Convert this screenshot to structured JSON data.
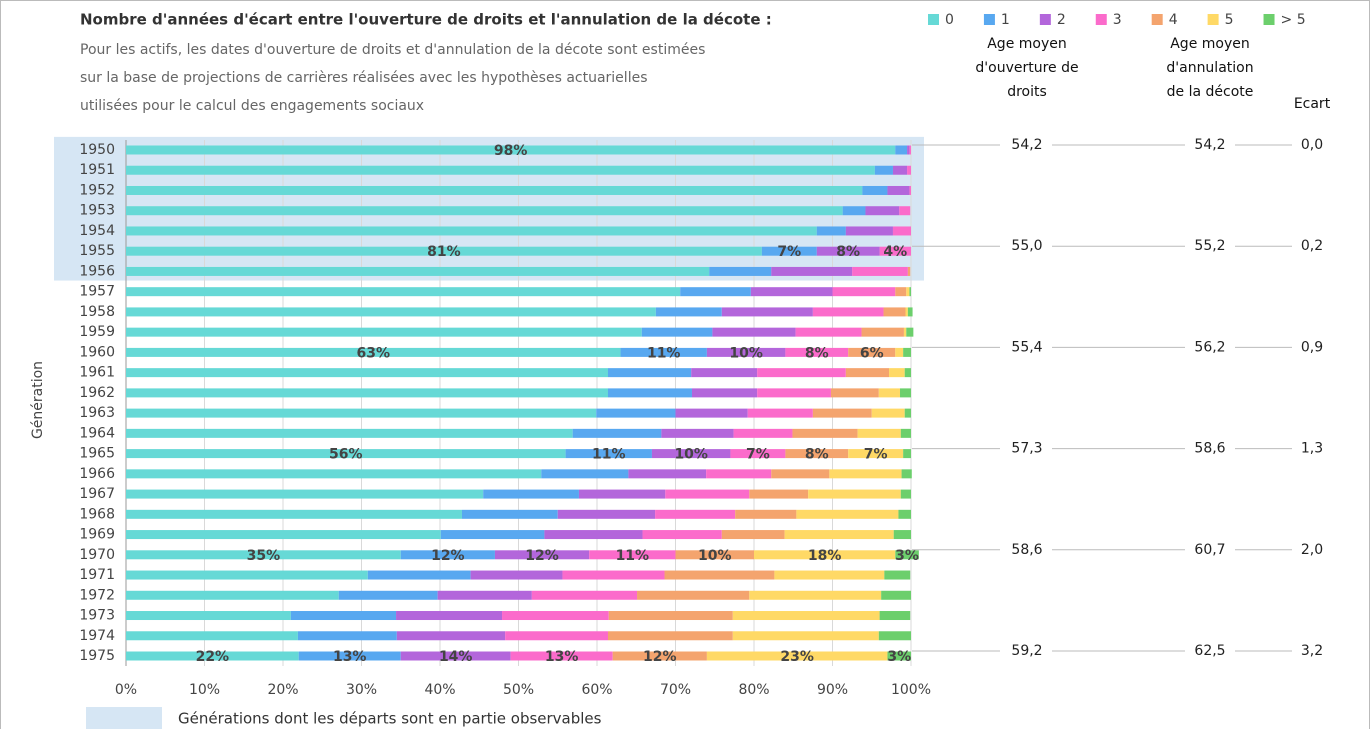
{
  "chart_data": {
    "type": "stacked-barh",
    "title": "Nombre d'années d'écart entre l'ouverture de droits et l'annulation de la décote :",
    "subtitle": [
      "Pour les actifs, les dates d'ouverture de droits et d'annulation de la décote sont estimées",
      "sur la base de projections de carrières réalisées avec les hypothèses actuarielles",
      "utilisées pour le calcul des engagements sociaux"
    ],
    "y_label": "Génération",
    "categories": [
      "1950",
      "1951",
      "1952",
      "1953",
      "1954",
      "1955",
      "1956",
      "1957",
      "1958",
      "1959",
      "1960",
      "1961",
      "1962",
      "1963",
      "1964",
      "1965",
      "1966",
      "1967",
      "1968",
      "1969",
      "1970",
      "1971",
      "1972",
      "1973",
      "1974",
      "1975"
    ],
    "xlim": [
      0,
      100
    ],
    "xticks": [
      {
        "value": 0,
        "label": "0%"
      },
      {
        "value": 10,
        "label": "10%"
      },
      {
        "value": 20,
        "label": "20%"
      },
      {
        "value": 30,
        "label": "30%"
      },
      {
        "value": 40,
        "label": "40%"
      },
      {
        "value": 50,
        "label": "50%"
      },
      {
        "value": 60,
        "label": "60%"
      },
      {
        "value": 70,
        "label": "70%"
      },
      {
        "value": 80,
        "label": "80%"
      },
      {
        "value": 90,
        "label": "90%"
      },
      {
        "value": 100,
        "label": "100%"
      }
    ],
    "grid": true,
    "legend_position": "top-right",
    "highlight": {
      "label": "Générations dont les départs sont en partie observables",
      "from": 0,
      "to": 6,
      "color": "#d6e6f4"
    },
    "series": [
      {
        "name": "0",
        "color": "#66d9d6",
        "values": [
          98,
          95.4,
          93.8,
          91.3,
          88,
          81,
          74.3,
          70.6,
          67.5,
          65.7,
          63,
          61.4,
          61.4,
          59.9,
          56.9,
          56,
          52.9,
          45.5,
          42.8,
          40.1,
          35,
          30.8,
          27.1,
          21,
          21.9,
          22
        ],
        "value_labels": [
          "98%",
          null,
          null,
          null,
          null,
          "81%",
          null,
          null,
          null,
          null,
          "63%",
          null,
          null,
          null,
          null,
          "56%",
          null,
          null,
          null,
          null,
          "35%",
          null,
          null,
          null,
          null,
          "22%"
        ]
      },
      {
        "name": "1",
        "color": "#58a8f0",
        "values": [
          1.5,
          2.3,
          3.2,
          2.9,
          3.7,
          7,
          7.9,
          9,
          8.4,
          9,
          11,
          10.6,
          10.7,
          10.1,
          11.3,
          11,
          11.1,
          12.2,
          12.2,
          13.2,
          12,
          13.1,
          12.6,
          13.4,
          12.6,
          13
        ],
        "value_labels": [
          null,
          null,
          null,
          null,
          null,
          "7%",
          null,
          null,
          null,
          null,
          "11%",
          null,
          null,
          null,
          null,
          "11%",
          null,
          null,
          null,
          null,
          "12%",
          null,
          null,
          null,
          null,
          "13%"
        ]
      },
      {
        "name": "2",
        "color": "#b366db",
        "values": [
          0.3,
          1.8,
          2.8,
          4.3,
          6,
          8,
          10.3,
          10.4,
          11.6,
          10.6,
          10,
          8.4,
          8.3,
          9.2,
          9.2,
          10,
          9.9,
          11,
          12.4,
          12.5,
          12,
          11.7,
          12,
          13.5,
          13.8,
          14
        ],
        "value_labels": [
          null,
          null,
          null,
          null,
          null,
          "8%",
          null,
          null,
          null,
          null,
          "10%",
          null,
          null,
          null,
          null,
          "10%",
          null,
          null,
          null,
          null,
          "12%",
          null,
          null,
          null,
          null,
          "14%"
        ]
      },
      {
        "name": "3",
        "color": "#fb6bcb",
        "values": [
          0.2,
          0.5,
          0.2,
          1.4,
          2.3,
          4,
          7.1,
          8,
          9,
          8.4,
          8,
          11.3,
          9.4,
          8.3,
          7.5,
          7,
          8.3,
          10.7,
          10.2,
          10.1,
          11,
          13,
          13.4,
          13.6,
          13.1,
          13
        ],
        "value_labels": [
          null,
          null,
          null,
          null,
          null,
          "4%",
          null,
          null,
          null,
          null,
          "8%",
          null,
          null,
          null,
          null,
          "7%",
          null,
          null,
          null,
          null,
          "11%",
          null,
          null,
          null,
          null,
          "13%"
        ]
      },
      {
        "name": "4",
        "color": "#f4a46e",
        "values": [
          0,
          0,
          0,
          0,
          0,
          0,
          0.3,
          1.4,
          2.8,
          5.4,
          6,
          5.5,
          6.1,
          7.5,
          8.3,
          8,
          7.4,
          7.5,
          7.8,
          8,
          10,
          14,
          14.3,
          15.8,
          15.9,
          12
        ],
        "value_labels": [
          null,
          null,
          null,
          null,
          null,
          null,
          null,
          null,
          null,
          null,
          "6%",
          null,
          null,
          null,
          null,
          "8%",
          null,
          null,
          null,
          null,
          "10%",
          null,
          null,
          null,
          null,
          "12%"
        ]
      },
      {
        "name": "5",
        "color": "#ffd966",
        "values": [
          0,
          0,
          0,
          0,
          0,
          0,
          0,
          0.4,
          0.3,
          0.3,
          1,
          2,
          2.7,
          4.2,
          5.5,
          7,
          9.2,
          11.8,
          13,
          13.9,
          18,
          14,
          16.8,
          18.7,
          18.6,
          23
        ],
        "value_labels": [
          null,
          null,
          null,
          null,
          null,
          null,
          null,
          null,
          null,
          null,
          null,
          null,
          null,
          null,
          null,
          "7%",
          null,
          null,
          null,
          null,
          "18%",
          null,
          null,
          null,
          null,
          "23%"
        ]
      },
      {
        "name": "> 5",
        "color": "#6ccf6c",
        "values": [
          0,
          0,
          0,
          0,
          0,
          0,
          0,
          0.2,
          0.6,
          0.9,
          1,
          0.8,
          1.4,
          0.8,
          1.3,
          1,
          1.3,
          1.3,
          1.6,
          2.2,
          3,
          3.3,
          3.8,
          3.9,
          4.1,
          3
        ],
        "value_labels": [
          null,
          null,
          null,
          null,
          null,
          null,
          null,
          null,
          null,
          null,
          null,
          null,
          null,
          null,
          null,
          null,
          null,
          null,
          null,
          null,
          "3%",
          null,
          null,
          null,
          null,
          "3%"
        ]
      }
    ]
  },
  "table": {
    "columns": [
      [
        "Age moyen",
        "d'ouverture de",
        "droits"
      ],
      [
        "Age moyen",
        "d'annulation",
        "de la décote"
      ],
      [
        "Ecart"
      ]
    ],
    "row_generations": [
      0,
      5,
      10,
      15,
      20,
      25
    ],
    "rows": [
      [
        "54,2",
        "54,2",
        "0,0"
      ],
      [
        "55,0",
        "55,2",
        "0,2"
      ],
      [
        "55,4",
        "56,2",
        "0,9"
      ],
      [
        "57,3",
        "58,6",
        "1,3"
      ],
      [
        "58,6",
        "60,7",
        "2,0"
      ],
      [
        "59,2",
        "62,5",
        "3,2"
      ]
    ]
  }
}
